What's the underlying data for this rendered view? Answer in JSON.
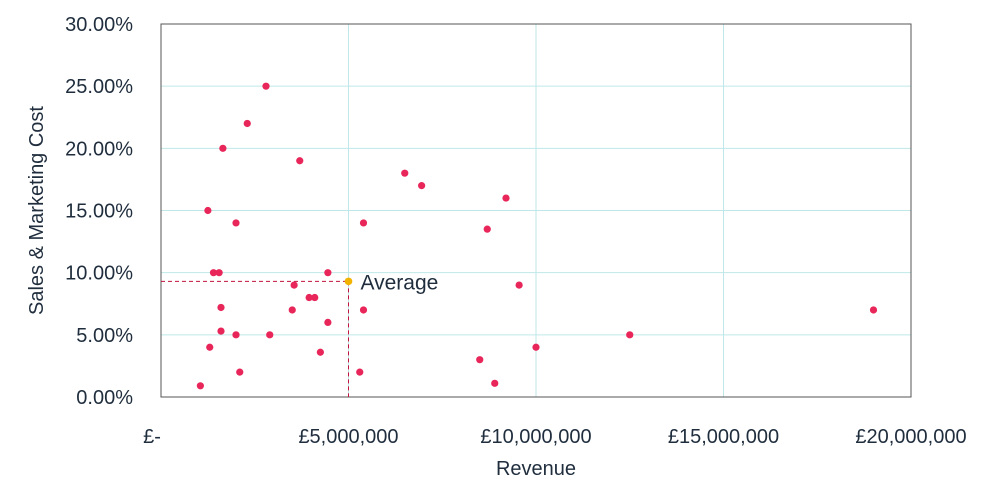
{
  "chart_data": {
    "type": "scatter",
    "xlabel": "Revenue",
    "ylabel": "Sales & Marketing Cost",
    "xlim": [
      0,
      20000000
    ],
    "ylim": [
      0,
      0.3
    ],
    "x_ticks": [
      {
        "value": 0,
        "label": "£-"
      },
      {
        "value": 5000000,
        "label": "£5,000,000"
      },
      {
        "value": 10000000,
        "label": "£10,000,000"
      },
      {
        "value": 15000000,
        "label": "£15,000,000"
      },
      {
        "value": 20000000,
        "label": "£20,000,000"
      }
    ],
    "y_ticks": [
      {
        "value": 0.0,
        "label": "0.00%"
      },
      {
        "value": 0.05,
        "label": "5.00%"
      },
      {
        "value": 0.1,
        "label": "10.00%"
      },
      {
        "value": 0.15,
        "label": "15.00%"
      },
      {
        "value": 0.2,
        "label": "20.00%"
      },
      {
        "value": 0.25,
        "label": "25.00%"
      },
      {
        "value": 0.3,
        "label": "30.00%"
      }
    ],
    "grid": true,
    "colors": {
      "points": "#e8265a",
      "average": "#f2b300",
      "grid": "#bfe7e7",
      "average_guides": "#c0143c",
      "plot_border": "#555555"
    },
    "points": [
      {
        "x": 2800000,
        "y": 0.25
      },
      {
        "x": 2300000,
        "y": 0.22
      },
      {
        "x": 1650000,
        "y": 0.2
      },
      {
        "x": 3700000,
        "y": 0.19
      },
      {
        "x": 6500000,
        "y": 0.18
      },
      {
        "x": 6950000,
        "y": 0.17
      },
      {
        "x": 9200000,
        "y": 0.16
      },
      {
        "x": 1250000,
        "y": 0.15
      },
      {
        "x": 2000000,
        "y": 0.14
      },
      {
        "x": 5400000,
        "y": 0.14
      },
      {
        "x": 8700000,
        "y": 0.135
      },
      {
        "x": 1400000,
        "y": 0.1
      },
      {
        "x": 1550000,
        "y": 0.1
      },
      {
        "x": 4450000,
        "y": 0.1
      },
      {
        "x": 3550000,
        "y": 0.09
      },
      {
        "x": 9550000,
        "y": 0.09
      },
      {
        "x": 3950000,
        "y": 0.08
      },
      {
        "x": 4100000,
        "y": 0.08
      },
      {
        "x": 1600000,
        "y": 0.072
      },
      {
        "x": 3500000,
        "y": 0.07
      },
      {
        "x": 5400000,
        "y": 0.07
      },
      {
        "x": 19000000,
        "y": 0.07
      },
      {
        "x": 4450000,
        "y": 0.06
      },
      {
        "x": 1600000,
        "y": 0.053
      },
      {
        "x": 2000000,
        "y": 0.05
      },
      {
        "x": 2900000,
        "y": 0.05
      },
      {
        "x": 12500000,
        "y": 0.05
      },
      {
        "x": 1300000,
        "y": 0.04
      },
      {
        "x": 10000000,
        "y": 0.04
      },
      {
        "x": 4250000,
        "y": 0.036
      },
      {
        "x": 8500000,
        "y": 0.03
      },
      {
        "x": 2100000,
        "y": 0.02
      },
      {
        "x": 5300000,
        "y": 0.02
      },
      {
        "x": 1050000,
        "y": 0.009
      },
      {
        "x": 8900000,
        "y": 0.011
      }
    ],
    "average": {
      "x": 5000000,
      "y": 0.093,
      "label": "Average"
    }
  }
}
